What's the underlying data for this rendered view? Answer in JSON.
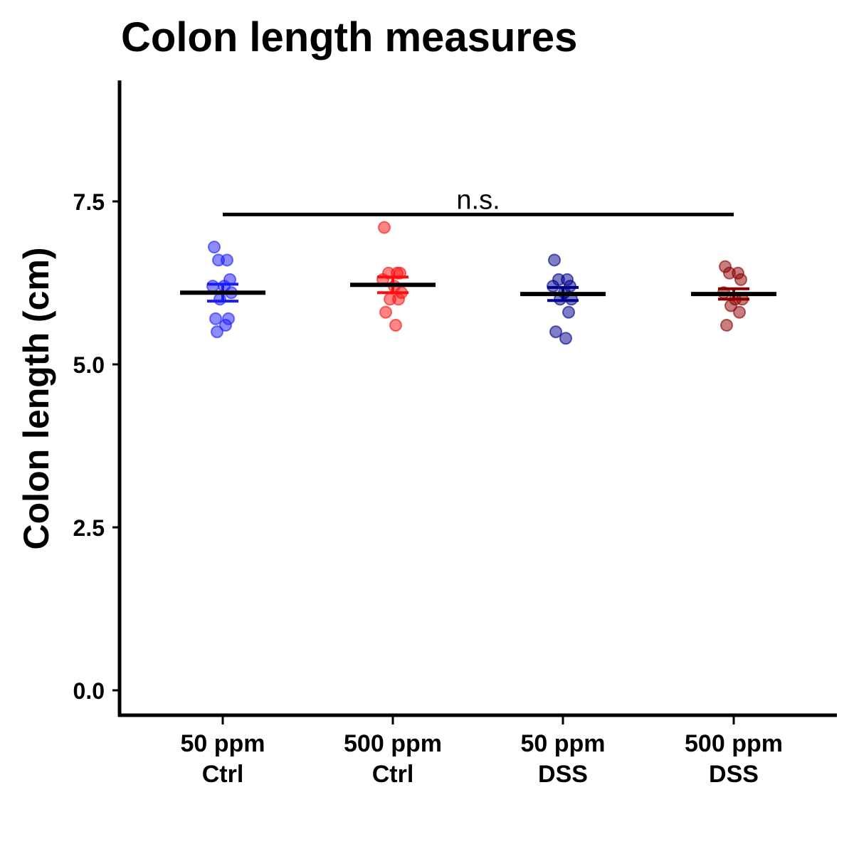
{
  "chart_data": {
    "type": "scatter",
    "title": "Colon length measures",
    "ylabel": "Colon length (cm)",
    "xlabel": "",
    "ylim": [
      0,
      9.2
    ],
    "yticks": [
      "0.0",
      "2.5",
      "5.0",
      "7.5"
    ],
    "ytick_values": [
      0,
      2.5,
      5.0,
      7.5
    ],
    "grid": false,
    "legend": "none",
    "categories": [
      {
        "line1": "50 ppm",
        "line2": "Ctrl"
      },
      {
        "line1": "500 ppm",
        "line2": "Ctrl"
      },
      {
        "line1": "50 ppm",
        "line2": "DSS"
      },
      {
        "line1": "500 ppm",
        "line2": "DSS"
      }
    ],
    "groups": [
      {
        "color": "#1a1aff",
        "mean": 6.1,
        "sem": [
          5.97,
          6.23
        ],
        "points": [
          6.8,
          6.6,
          6.6,
          6.3,
          6.2,
          6.2,
          6.1,
          6.0,
          5.7,
          5.7,
          5.6,
          5.5
        ]
      },
      {
        "color": "#ff0d0d",
        "mean": 6.22,
        "sem": [
          6.1,
          6.34
        ],
        "points": [
          7.1,
          6.4,
          6.4,
          6.4,
          6.3,
          6.2,
          6.1,
          6.0,
          6.0,
          5.8,
          5.6
        ]
      },
      {
        "color": "#00008b",
        "mean": 6.08,
        "sem": [
          5.98,
          6.18
        ],
        "points": [
          6.6,
          6.3,
          6.3,
          6.2,
          6.2,
          6.1,
          6.0,
          6.0,
          5.8,
          5.5,
          5.4
        ]
      },
      {
        "color": "#8b0000",
        "mean": 6.08,
        "sem": [
          6.0,
          6.16
        ],
        "points": [
          6.5,
          6.4,
          6.4,
          6.3,
          6.1,
          6.0,
          6.0,
          5.9,
          5.8,
          5.6
        ]
      }
    ],
    "significance": {
      "label": "n.s.",
      "y": 7.3,
      "from_group": 0,
      "to_group": 3
    }
  }
}
